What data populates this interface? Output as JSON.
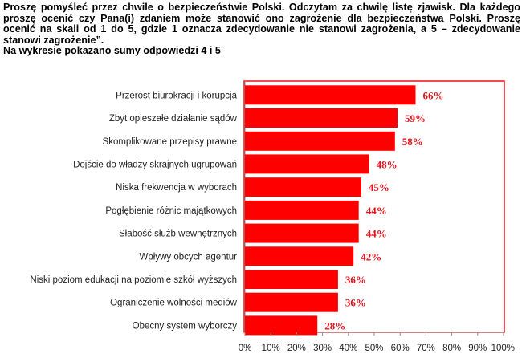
{
  "intro": {
    "question": "Proszę pomyśleć przez chwile o bezpieczeństwie Polski. Odczytam za chwilę listę zjawisk. Dla każdego proszę ocenić czy Pana(i) zdaniem może stanowić ono zagrożenie dla bezpieczeństwa Polski. Proszę ocenić na skali od 1 do 5, gdzie 1 oznacza zdecydowanie nie stanowi zagrożenia, a 5 – zdecydowanie stanowi zagrożenie”.",
    "subtitle": "Na wykresie pokazano sumy odpowiedzi 4 i 5"
  },
  "chart_data": {
    "type": "bar",
    "orientation": "horizontal",
    "title": "Proszę pomyśleć przez chwile o bezpieczeństwie Polski...",
    "subtitle": "Na wykresie pokazano sumy odpowiedzi 4 i 5",
    "categories": [
      "Przerost biurokracji i korupcja",
      "Zbyt opieszałe działanie sądów",
      "Skomplikowane przepisy prawne",
      "Dojście do władzy skrajnych ugrupowań",
      "Niska frekwencja w wyborach",
      "Pogłębienie różnic majątkowych",
      "Słabość służb wewnętrznych",
      "Wpływy obcych agentur",
      "Niski poziom edukacji na poziomie szkół wyższych",
      "Ograniczenie wolności mediów",
      "Obecny system wyborczy"
    ],
    "values": [
      66,
      59,
      58,
      48,
      45,
      44,
      44,
      42,
      36,
      36,
      28
    ],
    "value_labels": [
      "66%",
      "59%",
      "58%",
      "48%",
      "45%",
      "44%",
      "44%",
      "42%",
      "36%",
      "36%",
      "28%"
    ],
    "xlim": [
      0,
      100
    ],
    "xticks": [
      "0%",
      "10%",
      "20%",
      "30%",
      "40%",
      "50%",
      "60%",
      "70%",
      "80%",
      "90%",
      "100%"
    ],
    "xlabel": "",
    "ylabel": "",
    "bar_color": "#ff0000",
    "frame_color": "#e8121b",
    "label_color": "#e8121b"
  }
}
